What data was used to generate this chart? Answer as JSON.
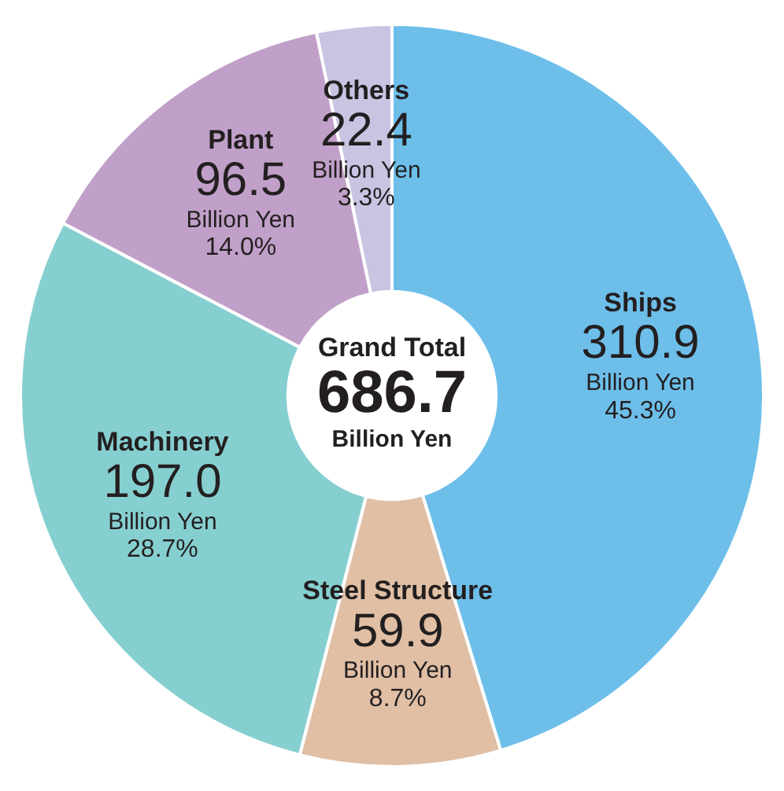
{
  "chart_data": {
    "type": "donut",
    "categories": [
      "Ships",
      "Steel Structure",
      "Machinery",
      "Plant",
      "Others"
    ],
    "values": [
      310.9,
      59.9,
      197.0,
      96.5,
      22.4
    ],
    "colors": [
      "#6dbfea",
      "#e0bfa5",
      "#86cfd0",
      "#c0a0c8",
      "#c8c4e2"
    ],
    "value_labels": [
      "310.9\nBillion Yen\n45.3%",
      "59.9\nBillion Yen\n8.7%",
      "197.0\nBillion Yen\n28.7%",
      "96.5\nBillion Yen\n14.0%",
      "22.4\nBillion Yen\n3.3%"
    ],
    "annotations": [
      "Grand Total",
      "686.7",
      "Billion Yen"
    ],
    "legend": false
  }
}
